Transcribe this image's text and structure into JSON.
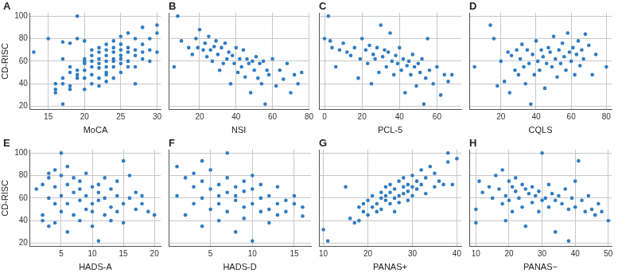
{
  "chart_data": [
    {
      "type": "scatter",
      "title": "A",
      "x_label": "MoCA",
      "y_label": "CD-RISC",
      "color": "#2f7cc1",
      "grid": true,
      "xlim": [
        12.5,
        30.5
      ],
      "xticks": [
        15,
        20,
        25,
        30
      ],
      "ylim": [
        17,
        103
      ],
      "yticks": [
        20,
        40,
        60,
        80,
        100
      ],
      "x": [
        13,
        15,
        16,
        16,
        16,
        17,
        17,
        17,
        17,
        17,
        18,
        18,
        18,
        18,
        18,
        19,
        19,
        19,
        19,
        19,
        20,
        20,
        20,
        20,
        20,
        20,
        20,
        21,
        21,
        21,
        21,
        21,
        21,
        22,
        22,
        22,
        22,
        22,
        22,
        22,
        23,
        23,
        23,
        23,
        23,
        23,
        23,
        23,
        24,
        24,
        24,
        24,
        24,
        24,
        24,
        25,
        25,
        25,
        25,
        25,
        25,
        25,
        26,
        26,
        26,
        26,
        26,
        27,
        27,
        27,
        27,
        27,
        28,
        28,
        28,
        28,
        29,
        29,
        29,
        30,
        30,
        30
      ],
      "values": [
        68,
        80,
        32,
        40,
        35,
        22,
        40,
        62,
        77,
        45,
        50,
        38,
        35,
        76,
        55,
        100,
        80,
        48,
        52,
        45,
        58,
        60,
        45,
        52,
        62,
        78,
        35,
        60,
        55,
        48,
        70,
        65,
        40,
        58,
        62,
        68,
        72,
        54,
        45,
        38,
        60,
        65,
        70,
        55,
        48,
        75,
        50,
        42,
        62,
        68,
        72,
        78,
        55,
        60,
        45,
        82,
        75,
        70,
        65,
        58,
        62,
        50,
        85,
        72,
        68,
        60,
        55,
        80,
        70,
        65,
        55,
        40,
        90,
        75,
        62,
        68,
        70,
        60,
        80,
        92,
        85,
        68
      ]
    },
    {
      "type": "scatter",
      "title": "B",
      "x_label": "NSI",
      "color": "#2f7cc1",
      "grid": true,
      "tick_labels": "x",
      "xlim": [
        3,
        80
      ],
      "xticks": [
        20,
        40,
        60,
        80
      ],
      "ylim": [
        17,
        103
      ],
      "yticks": [
        20,
        40,
        60,
        80,
        100
      ],
      "x": [
        6,
        8,
        10,
        14,
        16,
        18,
        19,
        20,
        22,
        23,
        24,
        25,
        26,
        27,
        28,
        29,
        30,
        31,
        32,
        33,
        34,
        35,
        36,
        37,
        38,
        39,
        40,
        41,
        42,
        43,
        44,
        45,
        46,
        47,
        48,
        49,
        50,
        51,
        52,
        53,
        54,
        55,
        56,
        57,
        58,
        60,
        62,
        64,
        66,
        68,
        70,
        72,
        74,
        76
      ],
      "values": [
        55,
        100,
        78,
        72,
        66,
        80,
        72,
        88,
        70,
        76,
        64,
        82,
        70,
        60,
        73,
        78,
        66,
        52,
        72,
        58,
        76,
        62,
        68,
        40,
        65,
        58,
        72,
        50,
        62,
        55,
        70,
        46,
        62,
        58,
        32,
        60,
        52,
        64,
        45,
        58,
        40,
        60,
        22,
        52,
        48,
        62,
        38,
        52,
        44,
        58,
        32,
        48,
        40,
        50
      ]
    },
    {
      "type": "scatter",
      "title": "C",
      "x_label": "PCL-5",
      "color": "#2f7cc1",
      "grid": true,
      "tick_labels": "x",
      "xlim": [
        -3,
        73
      ],
      "xticks": [
        0,
        20,
        40,
        60
      ],
      "ylim": [
        17,
        103
      ],
      "yticks": [
        20,
        40,
        60,
        80,
        100
      ],
      "x": [
        0,
        2,
        3,
        4,
        6,
        8,
        10,
        12,
        14,
        16,
        18,
        19,
        20,
        22,
        23,
        24,
        25,
        26,
        27,
        28,
        29,
        30,
        31,
        32,
        33,
        34,
        35,
        36,
        37,
        38,
        39,
        40,
        41,
        42,
        43,
        44,
        45,
        46,
        47,
        48,
        49,
        50,
        51,
        52,
        53,
        54,
        55,
        56,
        58,
        60,
        62,
        64,
        66,
        68
      ],
      "values": [
        80,
        100,
        78,
        72,
        55,
        70,
        76,
        68,
        65,
        72,
        45,
        62,
        80,
        70,
        58,
        74,
        40,
        66,
        62,
        72,
        50,
        92,
        64,
        70,
        55,
        68,
        85,
        60,
        48,
        65,
        58,
        72,
        52,
        62,
        32,
        56,
        60,
        48,
        66,
        55,
        38,
        58,
        50,
        62,
        22,
        45,
        80,
        52,
        40,
        55,
        30,
        48,
        42,
        48
      ]
    },
    {
      "type": "scatter",
      "title": "D",
      "x_label": "CQLS",
      "color": "#2f7cc1",
      "grid": true,
      "tick_labels": "x",
      "xlim": [
        2,
        83
      ],
      "xticks": [
        20,
        40,
        60,
        80
      ],
      "ylim": [
        17,
        103
      ],
      "yticks": [
        20,
        40,
        60,
        80,
        100
      ],
      "x": [
        5,
        14,
        16,
        18,
        20,
        22,
        24,
        25,
        26,
        28,
        29,
        30,
        31,
        32,
        33,
        34,
        35,
        36,
        37,
        38,
        39,
        40,
        41,
        42,
        43,
        44,
        45,
        46,
        47,
        48,
        49,
        50,
        51,
        52,
        53,
        54,
        55,
        56,
        57,
        58,
        59,
        60,
        61,
        62,
        63,
        64,
        65,
        66,
        67,
        68,
        70,
        72,
        74,
        80
      ],
      "values": [
        55,
        92,
        80,
        38,
        60,
        42,
        68,
        32,
        65,
        52,
        70,
        48,
        62,
        75,
        55,
        40,
        70,
        58,
        22,
        66,
        48,
        78,
        60,
        52,
        70,
        64,
        36,
        58,
        72,
        68,
        55,
        82,
        62,
        46,
        70,
        58,
        76,
        64,
        52,
        85,
        68,
        60,
        72,
        48,
        66,
        78,
        56,
        70,
        62,
        84,
        74,
        48,
        66,
        55
      ]
    },
    {
      "type": "scatter",
      "title": "E",
      "x_label": "HADS-A",
      "y_label": "CD-RISC",
      "color": "#2f7cc1",
      "grid": true,
      "xlim": [
        0,
        21
      ],
      "xticks": [
        5,
        10,
        15,
        20
      ],
      "ylim": [
        17,
        103
      ],
      "yticks": [
        20,
        40,
        60,
        80,
        100
      ],
      "x": [
        1,
        2,
        2,
        2,
        3,
        3,
        3,
        3,
        4,
        4,
        4,
        4,
        5,
        5,
        5,
        5,
        6,
        6,
        6,
        6,
        7,
        7,
        7,
        8,
        8,
        8,
        8,
        9,
        9,
        9,
        10,
        10,
        10,
        10,
        11,
        11,
        11,
        11,
        12,
        12,
        12,
        13,
        13,
        13,
        14,
        14,
        14,
        15,
        15,
        15,
        16,
        16,
        17,
        17,
        18,
        18,
        19,
        20
      ],
      "values": [
        68,
        45,
        40,
        72,
        82,
        35,
        60,
        78,
        85,
        55,
        38,
        70,
        100,
        62,
        48,
        80,
        72,
        30,
        88,
        55,
        78,
        45,
        65,
        68,
        40,
        58,
        75,
        62,
        50,
        82,
        70,
        35,
        55,
        48,
        65,
        22,
        72,
        58,
        60,
        45,
        78,
        68,
        52,
        40,
        62,
        48,
        75,
        55,
        93,
        38,
        80,
        60,
        50,
        65,
        62,
        55,
        48,
        45
      ]
    },
    {
      "type": "scatter",
      "title": "F",
      "x_label": "HADS-D",
      "color": "#2f7cc1",
      "grid": true,
      "tick_labels": "x",
      "xlim": [
        0,
        17
      ],
      "xticks": [
        5,
        10,
        15
      ],
      "ylim": [
        17,
        103
      ],
      "yticks": [
        20,
        40,
        60,
        80,
        100
      ],
      "x": [
        1,
        1,
        2,
        2,
        3,
        3,
        3,
        4,
        4,
        4,
        4,
        5,
        5,
        5,
        6,
        6,
        6,
        6,
        7,
        7,
        7,
        7,
        8,
        8,
        8,
        8,
        9,
        9,
        9,
        9,
        10,
        10,
        10,
        10,
        11,
        11,
        11,
        12,
        12,
        12,
        13,
        13,
        13,
        14,
        14,
        15,
        15,
        16,
        16
      ],
      "values": [
        88,
        62,
        78,
        45,
        70,
        55,
        82,
        93,
        60,
        35,
        75,
        68,
        50,
        85,
        62,
        40,
        72,
        55,
        100,
        65,
        48,
        78,
        70,
        58,
        30,
        62,
        75,
        52,
        42,
        66,
        68,
        55,
        22,
        80,
        60,
        48,
        72,
        62,
        50,
        38,
        70,
        55,
        45,
        58,
        48,
        55,
        62,
        52,
        44
      ]
    },
    {
      "type": "scatter",
      "title": "G",
      "x_label": "PANAS+",
      "color": "#2f7cc1",
      "grid": true,
      "tick_labels": "x",
      "xlim": [
        9,
        41
      ],
      "xticks": [
        10,
        20,
        30,
        40
      ],
      "ylim": [
        17,
        103
      ],
      "yticks": [
        20,
        40,
        60,
        80,
        100
      ],
      "x": [
        10,
        11,
        15,
        16,
        17,
        18,
        18,
        19,
        19,
        20,
        20,
        21,
        21,
        22,
        22,
        23,
        23,
        23,
        24,
        24,
        24,
        25,
        25,
        25,
        26,
        26,
        26,
        27,
        27,
        27,
        28,
        28,
        28,
        29,
        29,
        29,
        30,
        30,
        30,
        31,
        31,
        32,
        32,
        33,
        33,
        34,
        35,
        35,
        36,
        37,
        38,
        38,
        39,
        40
      ],
      "values": [
        32,
        22,
        70,
        42,
        38,
        52,
        40,
        48,
        55,
        58,
        45,
        52,
        62,
        55,
        48,
        60,
        65,
        50,
        58,
        70,
        62,
        65,
        55,
        72,
        60,
        68,
        48,
        62,
        75,
        56,
        70,
        64,
        78,
        66,
        72,
        58,
        80,
        70,
        62,
        75,
        68,
        85,
        72,
        78,
        64,
        88,
        82,
        70,
        75,
        72,
        100,
        92,
        72,
        95
      ]
    },
    {
      "type": "scatter",
      "title": "H",
      "x_label": "PANAS−",
      "color": "#2f7cc1",
      "grid": true,
      "tick_labels": "x",
      "xlim": [
        8,
        51
      ],
      "xticks": [
        10,
        20,
        30,
        40,
        50
      ],
      "ylim": [
        17,
        103
      ],
      "yticks": [
        20,
        40,
        60,
        80,
        100
      ],
      "x": [
        10,
        10,
        11,
        12,
        14,
        15,
        16,
        17,
        18,
        18,
        19,
        19,
        20,
        20,
        21,
        21,
        22,
        22,
        23,
        24,
        24,
        25,
        25,
        26,
        27,
        27,
        28,
        29,
        29,
        30,
        30,
        31,
        32,
        32,
        33,
        34,
        34,
        35,
        36,
        37,
        38,
        38,
        39,
        40,
        40,
        41,
        42,
        43,
        44,
        45,
        46,
        47,
        48,
        50
      ],
      "values": [
        50,
        38,
        75,
        65,
        70,
        60,
        80,
        68,
        55,
        85,
        62,
        40,
        75,
        58,
        70,
        48,
        66,
        78,
        60,
        72,
        52,
        68,
        35,
        64,
        70,
        56,
        62,
        48,
        66,
        100,
        58,
        60,
        72,
        52,
        64,
        30,
        58,
        62,
        55,
        68,
        22,
        50,
        60,
        75,
        52,
        93,
        58,
        48,
        62,
        50,
        45,
        55,
        48,
        40
      ]
    }
  ]
}
